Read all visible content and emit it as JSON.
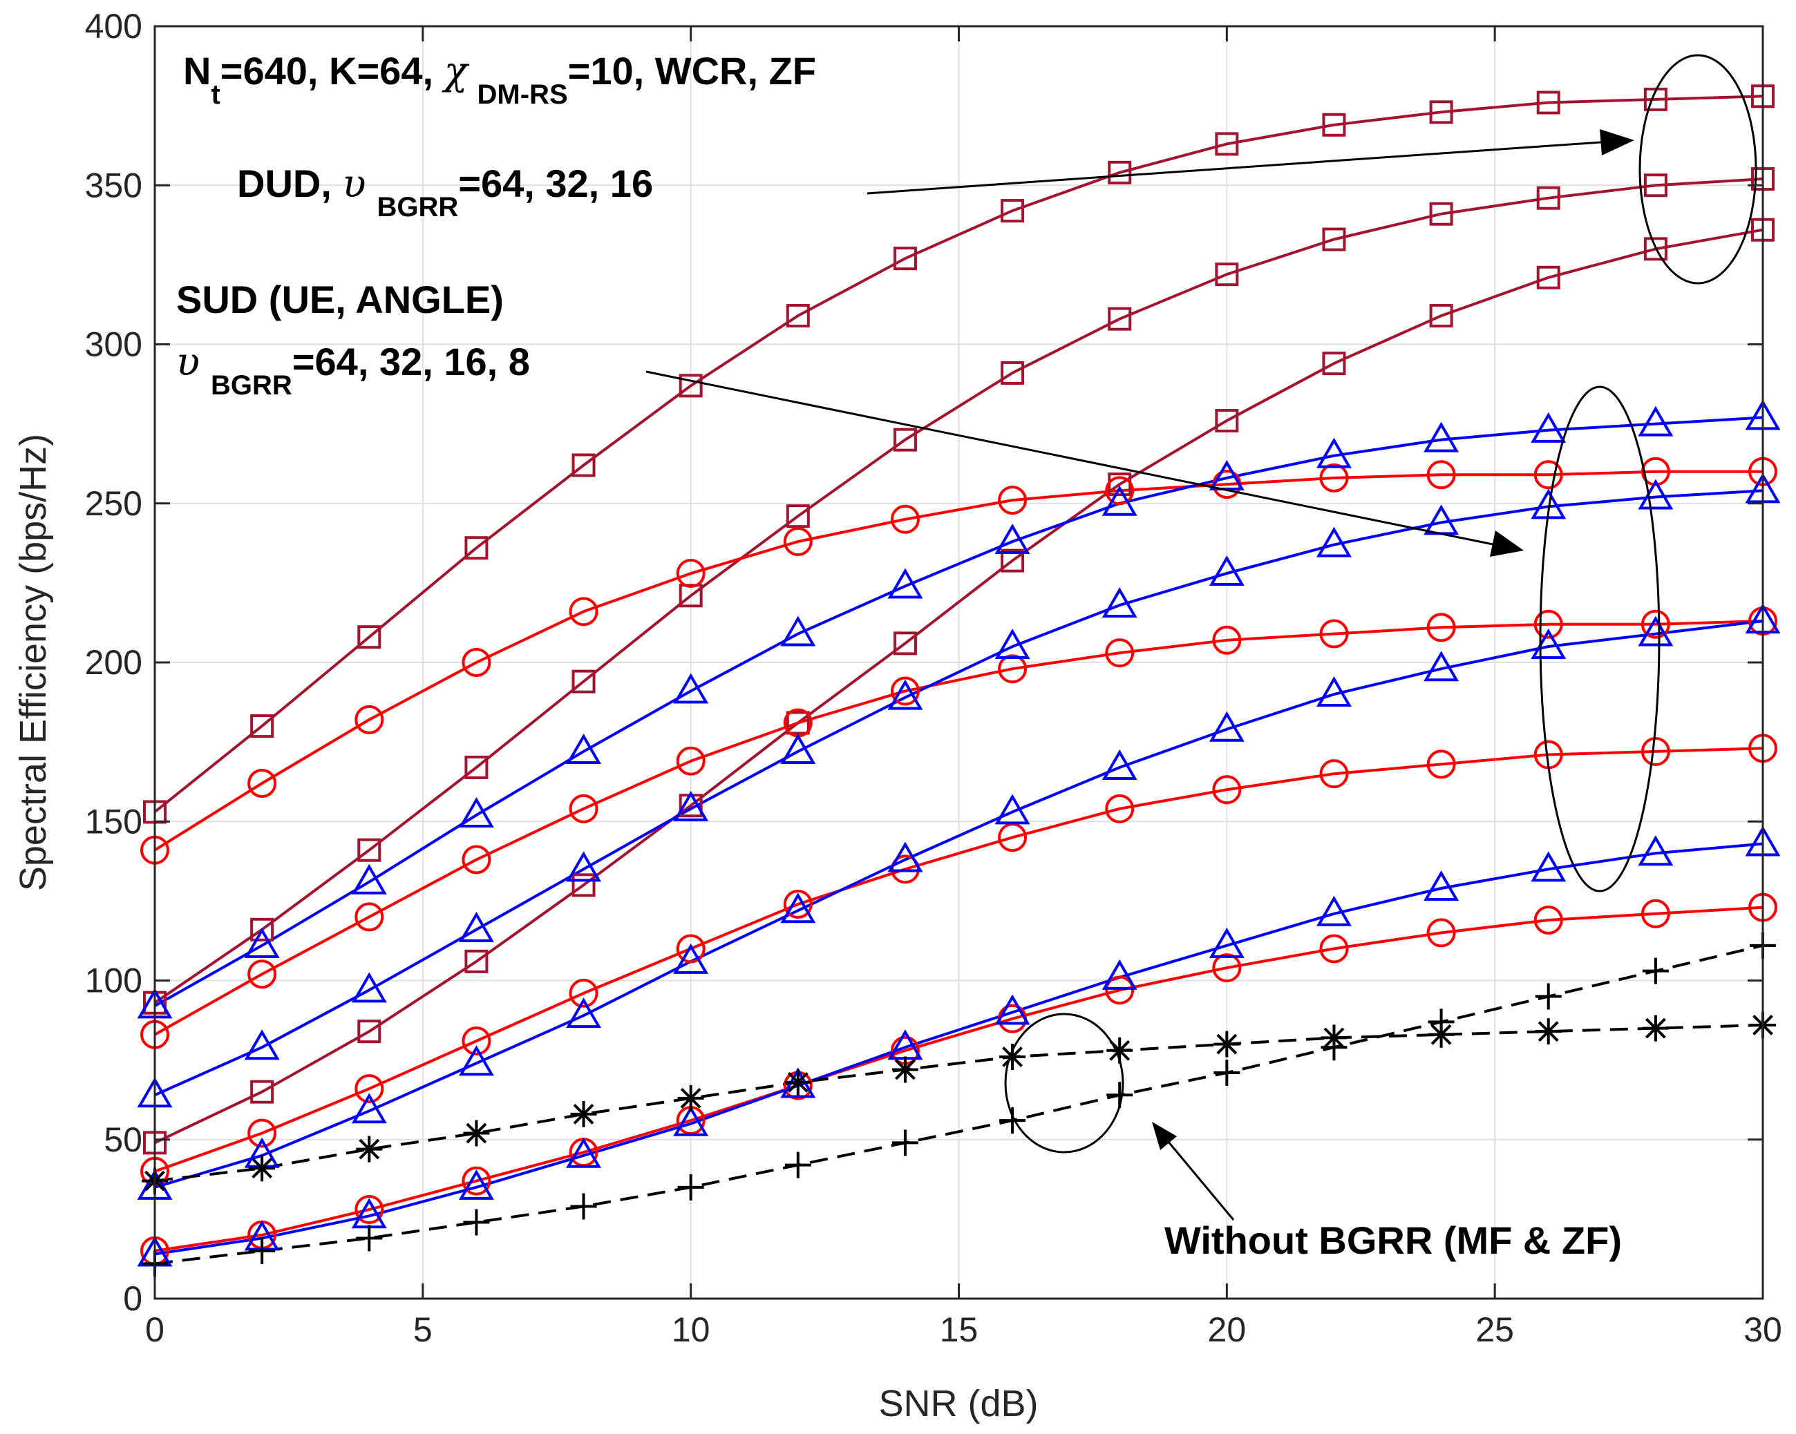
{
  "chart_data": {
    "type": "line",
    "xlabel": "SNR (dB)",
    "ylabel": "Spectral Efficiency (bps/Hz)",
    "xlim": [
      0,
      30
    ],
    "ylim": [
      0,
      400
    ],
    "xticks": [
      0,
      5,
      10,
      15,
      20,
      25,
      30
    ],
    "yticks": [
      0,
      50,
      100,
      150,
      200,
      250,
      300,
      350,
      400
    ],
    "grid": true,
    "x": [
      0,
      2,
      4,
      6,
      8,
      10,
      12,
      14,
      16,
      18,
      20,
      22,
      24,
      26,
      28,
      30
    ],
    "series": [
      {
        "name": "DUD, υBGRR=64",
        "color": "#a2142f",
        "marker": "square",
        "dashed": false,
        "values": [
          153,
          180,
          208,
          236,
          262,
          287,
          309,
          327,
          342,
          354,
          363,
          369,
          373,
          376,
          377,
          378
        ]
      },
      {
        "name": "DUD, υBGRR=32",
        "color": "#a2142f",
        "marker": "square",
        "dashed": false,
        "values": [
          93,
          116,
          141,
          167,
          194,
          221,
          246,
          270,
          291,
          308,
          322,
          333,
          341,
          346,
          350,
          352
        ]
      },
      {
        "name": "DUD, υBGRR=16",
        "color": "#a2142f",
        "marker": "square",
        "dashed": false,
        "values": [
          49,
          65,
          84,
          106,
          130,
          155,
          181,
          206,
          232,
          256,
          276,
          294,
          309,
          321,
          330,
          336
        ]
      },
      {
        "name": "SUD (UE), υBGRR=64",
        "color": "#ff0000",
        "marker": "circle",
        "dashed": false,
        "values": [
          141,
          162,
          182,
          200,
          216,
          228,
          238,
          245,
          251,
          254,
          256,
          258,
          259,
          259,
          260,
          260
        ]
      },
      {
        "name": "SUD (UE), υBGRR=32",
        "color": "#ff0000",
        "marker": "circle",
        "dashed": false,
        "values": [
          83,
          102,
          120,
          138,
          154,
          169,
          181,
          191,
          198,
          203,
          207,
          209,
          211,
          212,
          212,
          213
        ]
      },
      {
        "name": "SUD (UE), υBGRR=16",
        "color": "#ff0000",
        "marker": "circle",
        "dashed": false,
        "values": [
          40,
          52,
          66,
          81,
          96,
          110,
          124,
          135,
          145,
          154,
          160,
          165,
          168,
          171,
          172,
          173
        ]
      },
      {
        "name": "SUD (UE), υBGRR=8",
        "color": "#ff0000",
        "marker": "circle",
        "dashed": false,
        "values": [
          15,
          20,
          28,
          37,
          46,
          56,
          67,
          78,
          88,
          97,
          104,
          110,
          115,
          119,
          121,
          123
        ]
      },
      {
        "name": "SUD (ANGLE), υBGRR=64",
        "color": "#0000ff",
        "marker": "triangle",
        "dashed": false,
        "values": [
          92,
          111,
          131,
          152,
          172,
          191,
          209,
          224,
          238,
          250,
          258,
          265,
          270,
          273,
          275,
          277
        ]
      },
      {
        "name": "SUD (ANGLE), υBGRR=32",
        "color": "#0000ff",
        "marker": "triangle",
        "dashed": false,
        "values": [
          64,
          79,
          97,
          116,
          135,
          154,
          172,
          189,
          205,
          218,
          228,
          237,
          244,
          249,
          252,
          254
        ]
      },
      {
        "name": "SUD (ANGLE), υBGRR=16",
        "color": "#0000ff",
        "marker": "triangle",
        "dashed": false,
        "values": [
          35,
          45,
          59,
          74,
          89,
          106,
          122,
          138,
          153,
          167,
          179,
          190,
          198,
          205,
          209,
          213
        ]
      },
      {
        "name": "SUD (ANGLE), υBGRR=8",
        "color": "#0000ff",
        "marker": "triangle",
        "dashed": false,
        "values": [
          14,
          19,
          26,
          35,
          45,
          55,
          67,
          79,
          90,
          101,
          111,
          121,
          129,
          135,
          140,
          143
        ]
      },
      {
        "name": "Without BGRR (ZF)",
        "color": "#000000",
        "marker": "asterisk",
        "dashed": true,
        "values": [
          37,
          41,
          47,
          52,
          58,
          63,
          68,
          72,
          76,
          78,
          80,
          82,
          83,
          84,
          85,
          86
        ]
      },
      {
        "name": "Without BGRR (MF)",
        "color": "#000000",
        "marker": "plus",
        "dashed": true,
        "values": [
          11,
          15,
          19,
          24,
          29,
          35,
          42,
          49,
          56,
          64,
          71,
          79,
          87,
          95,
          103,
          111
        ]
      }
    ],
    "annotations": {
      "config": {
        "n": "N",
        "n_sub": "t",
        "part1": "=640, K=64, ",
        "chi": "χ",
        "chi_sub": "DM-RS",
        "part2": "=10, WCR, ZF"
      },
      "dud": {
        "prefix": "DUD, ",
        "upsilon": "υ",
        "sub": "BGRR",
        "values": "=64, 32, 16"
      },
      "sud": {
        "title": "SUD (UE, ANGLE)",
        "upsilon": "υ",
        "sub": "BGRR",
        "values": "=64, 32, 16, 8"
      },
      "without": "Without BGRR (MF & ZF)"
    }
  }
}
